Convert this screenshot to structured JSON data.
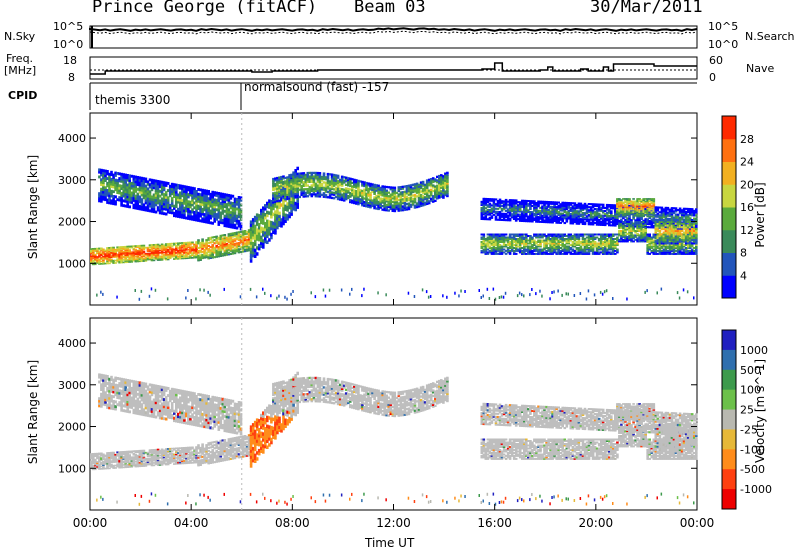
{
  "header": {
    "station": "Prince George (fitACF)",
    "beam": "Beam 03",
    "date": "30/Mar/2011"
  },
  "side_labels": {
    "nsky": "N.Sky",
    "nsearch": "N.Search",
    "freq_line1": "Freq.",
    "freq_line2": "[MHz]",
    "nave": "Nave",
    "cpid": "CPID"
  },
  "top_axis_ticks": {
    "nsky_top": "10^5",
    "nsky_bottom": "10^0",
    "freq_top": "18",
    "freq_bottom": "8",
    "nave_top": "60",
    "nave_bottom": "0"
  },
  "cpid_labels": [
    "themis 3300",
    "normalsound (fast) -157"
  ],
  "colors": {
    "scatter_gray": "#bebebe",
    "power_scale": [
      "#0000ff",
      "#2255bb",
      "#3a8a5a",
      "#5aaa3c",
      "#c8d640",
      "#f2b020",
      "#ff7010",
      "#ff2a00"
    ],
    "velocity_scale": [
      "#2020c0",
      "#2f6fae",
      "#3d9a4c",
      "#6cc04a",
      "#b8b8b0",
      "#e6b838",
      "#ff8c1a",
      "#ff4010",
      "#ee0000"
    ]
  },
  "chart_data": [
    {
      "type": "heatmap",
      "title": "",
      "xlabel": "",
      "ylabel": "Slant Range [km]",
      "x_tick_labels": [
        "00:00",
        "04:00",
        "08:00",
        "12:00",
        "16:00",
        "20:00",
        "00:00"
      ],
      "y_tick_labels": [
        "1000",
        "2000",
        "3000",
        "4000"
      ],
      "ylim": [
        0,
        4600
      ],
      "colorbar": {
        "label": "Power [dB]",
        "ticks": [
          "4",
          "8",
          "12",
          "16",
          "20",
          "24",
          "28"
        ]
      },
      "echo_bands_km": [
        {
          "start_h": 0.0,
          "end_h": 4.2,
          "range_center": 1250,
          "width": 350,
          "power_db": 28
        },
        {
          "start_h": 4.2,
          "end_h": 6.4,
          "range_center": 1500,
          "width": 450,
          "power_db": 24
        },
        {
          "start_h": 6.4,
          "end_h": 8.2,
          "range_center": 2500,
          "width": 600,
          "power_db": 16
        },
        {
          "start_h": 8.2,
          "end_h": 14.0,
          "range_center": 2850,
          "width": 500,
          "power_db": 16
        },
        {
          "start_h": 15.5,
          "end_h": 24.0,
          "range_center": 1700,
          "width": 700,
          "power_db": 12
        }
      ]
    },
    {
      "type": "heatmap",
      "title": "",
      "xlabel": "Time UT",
      "ylabel": "Slant Range [km]",
      "x_tick_labels": [
        "00:00",
        "04:00",
        "08:00",
        "12:00",
        "16:00",
        "20:00",
        "00:00"
      ],
      "y_tick_labels": [
        "1000",
        "2000",
        "3000",
        "4000"
      ],
      "ylim": [
        0,
        4600
      ],
      "colorbar": {
        "label": "Velocity [m s^-1]",
        "ticks": [
          "1000",
          "500",
          "100",
          "25",
          "-25",
          "-100",
          "-500",
          "-1000"
        ]
      }
    }
  ]
}
